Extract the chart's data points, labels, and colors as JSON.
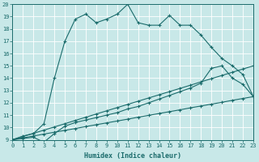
{
  "xlabel": "Humidex (Indice chaleur)",
  "bg_color": "#c8e8e8",
  "grid_color": "#ffffff",
  "line_color": "#1a6b6b",
  "xlim": [
    0,
    23
  ],
  "ylim": [
    9,
    20
  ],
  "xtick_vals": [
    0,
    1,
    2,
    3,
    4,
    5,
    6,
    7,
    8,
    9,
    10,
    11,
    12,
    13,
    14,
    15,
    16,
    17,
    18,
    19,
    20,
    21,
    22,
    23
  ],
  "ytick_vals": [
    9,
    10,
    11,
    12,
    13,
    14,
    15,
    16,
    17,
    18,
    19,
    20
  ],
  "line1_x": [
    0,
    1,
    2,
    3,
    4,
    5,
    6,
    7,
    8,
    9,
    10,
    11,
    12,
    13,
    14,
    15,
    16,
    17,
    18,
    19,
    20,
    21,
    22,
    23
  ],
  "line1_y": [
    9.0,
    9.3,
    9.5,
    10.3,
    14.0,
    17.0,
    18.8,
    19.2,
    18.5,
    18.8,
    19.2,
    20.0,
    18.5,
    18.3,
    18.3,
    19.1,
    18.3,
    18.3,
    17.5,
    16.5,
    15.6,
    15.0,
    14.3,
    12.5
  ],
  "line2_x": [
    0,
    1,
    2,
    3,
    4,
    5,
    6,
    7,
    8,
    9,
    10,
    11,
    12,
    13,
    14,
    15,
    16,
    17,
    18,
    19,
    20,
    21,
    22,
    23
  ],
  "line2_y": [
    9.0,
    9.1,
    9.2,
    8.8,
    9.5,
    10.1,
    10.4,
    10.6,
    10.8,
    11.0,
    11.2,
    11.5,
    11.7,
    12.0,
    12.3,
    12.6,
    12.9,
    13.2,
    13.6,
    14.8,
    15.0,
    14.0,
    13.5,
    12.5
  ],
  "line3_x": [
    0,
    1,
    2,
    3,
    4,
    5,
    6,
    7,
    8,
    9,
    10,
    11,
    12,
    13,
    14,
    15,
    16,
    17,
    18,
    19,
    20,
    21,
    22,
    23
  ],
  "line3_y": [
    9.0,
    9.26,
    9.52,
    9.78,
    10.04,
    10.3,
    10.57,
    10.83,
    11.09,
    11.35,
    11.61,
    11.87,
    12.13,
    12.39,
    12.65,
    12.91,
    13.17,
    13.43,
    13.7,
    13.96,
    14.22,
    14.48,
    14.74,
    15.0
  ],
  "line4_x": [
    0,
    1,
    2,
    3,
    4,
    5,
    6,
    7,
    8,
    9,
    10,
    11,
    12,
    13,
    14,
    15,
    16,
    17,
    18,
    19,
    20,
    21,
    22,
    23
  ],
  "line4_y": [
    9.0,
    9.15,
    9.3,
    9.46,
    9.61,
    9.76,
    9.91,
    10.07,
    10.22,
    10.37,
    10.52,
    10.67,
    10.83,
    10.98,
    11.13,
    11.28,
    11.43,
    11.59,
    11.74,
    11.89,
    12.04,
    12.2,
    12.35,
    12.5
  ]
}
